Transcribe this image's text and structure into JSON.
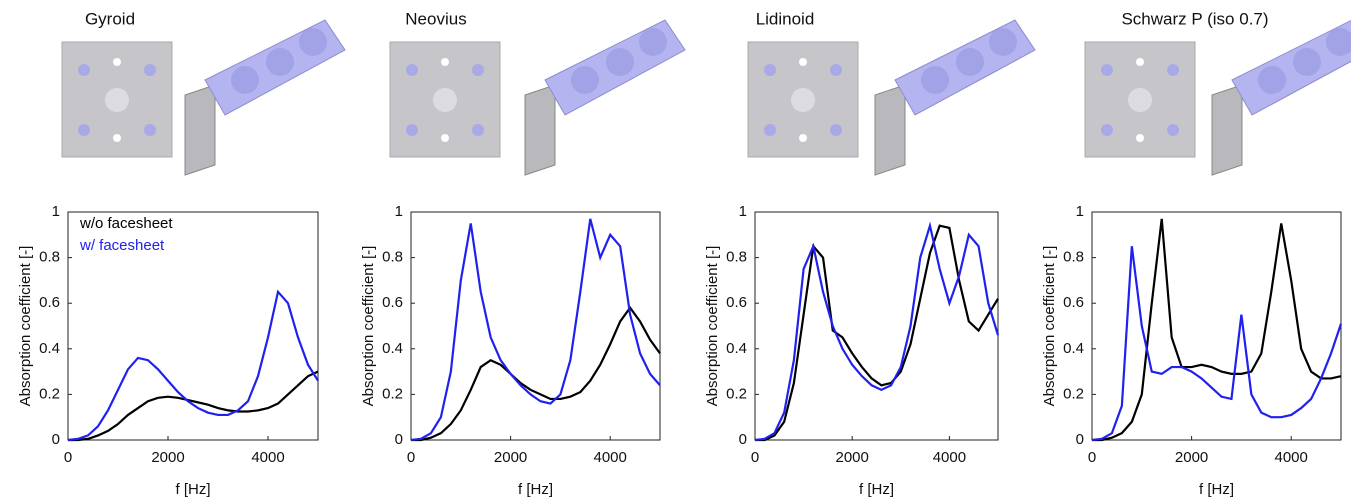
{
  "chart_data": [
    {
      "type": "line",
      "title": "Gyroid",
      "x_label": "f [Hz]",
      "y_label": "Absorption coefficient [-]",
      "x": [
        0,
        200,
        400,
        600,
        800,
        1000,
        1200,
        1400,
        1600,
        1800,
        2000,
        2200,
        2400,
        2600,
        2800,
        3000,
        3200,
        3400,
        3600,
        3800,
        4000,
        4200,
        4400,
        4600,
        4800,
        5000
      ],
      "series": [
        {
          "name": "w/o facesheet",
          "color": "#000000",
          "values": [
            0,
            0,
            0.005,
            0.02,
            0.04,
            0.07,
            0.11,
            0.14,
            0.17,
            0.185,
            0.19,
            0.185,
            0.175,
            0.165,
            0.155,
            0.14,
            0.13,
            0.125,
            0.125,
            0.13,
            0.14,
            0.16,
            0.2,
            0.24,
            0.28,
            0.3
          ]
        },
        {
          "name": "w/ facesheet",
          "color": "#2020f0",
          "values": [
            0,
            0.005,
            0.02,
            0.06,
            0.13,
            0.22,
            0.31,
            0.36,
            0.35,
            0.31,
            0.26,
            0.21,
            0.17,
            0.14,
            0.12,
            0.11,
            0.11,
            0.13,
            0.17,
            0.28,
            0.45,
            0.65,
            0.6,
            0.45,
            0.33,
            0.26
          ]
        }
      ],
      "xlim": [
        0,
        5000
      ],
      "ylim": [
        0,
        1
      ],
      "xticks": [
        0,
        2000,
        4000
      ],
      "yticks": [
        0,
        0.2,
        0.4,
        0.6,
        0.8,
        1
      ],
      "legend": "upper left"
    },
    {
      "type": "line",
      "title": "Neovius",
      "x_label": "f [Hz]",
      "y_label": "Absorption coefficient [-]",
      "x": [
        0,
        200,
        400,
        600,
        800,
        1000,
        1200,
        1400,
        1600,
        1800,
        2000,
        2200,
        2400,
        2600,
        2800,
        3000,
        3200,
        3400,
        3600,
        3800,
        4000,
        4200,
        4400,
        4600,
        4800,
        5000
      ],
      "series": [
        {
          "name": "w/o facesheet",
          "color": "#000000",
          "values": [
            0,
            0,
            0.01,
            0.03,
            0.07,
            0.13,
            0.22,
            0.32,
            0.35,
            0.33,
            0.29,
            0.25,
            0.22,
            0.2,
            0.18,
            0.18,
            0.19,
            0.21,
            0.26,
            0.33,
            0.42,
            0.52,
            0.58,
            0.52,
            0.44,
            0.38
          ]
        },
        {
          "name": "w/ facesheet",
          "color": "#2020f0",
          "values": [
            0,
            0.005,
            0.03,
            0.1,
            0.3,
            0.7,
            0.95,
            0.65,
            0.45,
            0.35,
            0.29,
            0.24,
            0.2,
            0.17,
            0.16,
            0.2,
            0.35,
            0.65,
            0.97,
            0.8,
            0.9,
            0.85,
            0.55,
            0.38,
            0.29,
            0.24
          ]
        }
      ],
      "xlim": [
        0,
        5000
      ],
      "ylim": [
        0,
        1
      ],
      "xticks": [
        0,
        2000,
        4000
      ],
      "yticks": [
        0,
        0.2,
        0.4,
        0.6,
        0.8,
        1
      ]
    },
    {
      "type": "line",
      "title": "Lidinoid",
      "x_label": "f [Hz]",
      "y_label": "Absorption coefficient [-]",
      "x": [
        0,
        200,
        400,
        600,
        800,
        1000,
        1200,
        1400,
        1600,
        1800,
        2000,
        2200,
        2400,
        2600,
        2800,
        3000,
        3200,
        3400,
        3600,
        3800,
        4000,
        4200,
        4400,
        4600,
        4800,
        5000
      ],
      "series": [
        {
          "name": "w/o facesheet",
          "color": "#000000",
          "values": [
            0,
            0,
            0.02,
            0.08,
            0.25,
            0.55,
            0.85,
            0.8,
            0.48,
            0.45,
            0.38,
            0.32,
            0.27,
            0.24,
            0.25,
            0.3,
            0.42,
            0.62,
            0.82,
            0.94,
            0.93,
            0.7,
            0.52,
            0.48,
            0.55,
            0.62
          ]
        },
        {
          "name": "w/ facesheet",
          "color": "#2020f0",
          "values": [
            0,
            0.005,
            0.03,
            0.12,
            0.35,
            0.75,
            0.85,
            0.65,
            0.5,
            0.4,
            0.33,
            0.28,
            0.24,
            0.22,
            0.24,
            0.32,
            0.5,
            0.8,
            0.94,
            0.75,
            0.6,
            0.72,
            0.9,
            0.85,
            0.6,
            0.46
          ]
        }
      ],
      "xlim": [
        0,
        5000
      ],
      "ylim": [
        0,
        1
      ],
      "xticks": [
        0,
        2000,
        4000
      ],
      "yticks": [
        0,
        0.2,
        0.4,
        0.6,
        0.8,
        1
      ]
    },
    {
      "type": "line",
      "title": "Schwarz P (iso 0.7)",
      "x_label": "f [Hz]",
      "y_label": "Absorption coefficient [-]",
      "x": [
        0,
        200,
        400,
        600,
        800,
        1000,
        1200,
        1400,
        1600,
        1800,
        2000,
        2200,
        2400,
        2600,
        2800,
        3000,
        3200,
        3400,
        3600,
        3800,
        4000,
        4200,
        4400,
        4600,
        4800,
        5000
      ],
      "series": [
        {
          "name": "w/o facesheet",
          "color": "#000000",
          "values": [
            0,
            0,
            0.01,
            0.03,
            0.08,
            0.2,
            0.6,
            0.97,
            0.45,
            0.32,
            0.32,
            0.33,
            0.32,
            0.3,
            0.29,
            0.29,
            0.3,
            0.38,
            0.65,
            0.95,
            0.7,
            0.4,
            0.3,
            0.27,
            0.27,
            0.28
          ]
        },
        {
          "name": "w/ facesheet",
          "color": "#2020f0",
          "values": [
            0,
            0.005,
            0.03,
            0.15,
            0.85,
            0.5,
            0.3,
            0.29,
            0.32,
            0.32,
            0.3,
            0.27,
            0.23,
            0.19,
            0.18,
            0.55,
            0.2,
            0.12,
            0.1,
            0.1,
            0.11,
            0.14,
            0.18,
            0.27,
            0.38,
            0.51
          ]
        }
      ],
      "xlim": [
        0,
        5000
      ],
      "ylim": [
        0,
        1
      ],
      "xticks": [
        0,
        2000,
        4000
      ],
      "yticks": [
        0,
        0.2,
        0.4,
        0.6,
        0.8,
        1
      ]
    }
  ]
}
